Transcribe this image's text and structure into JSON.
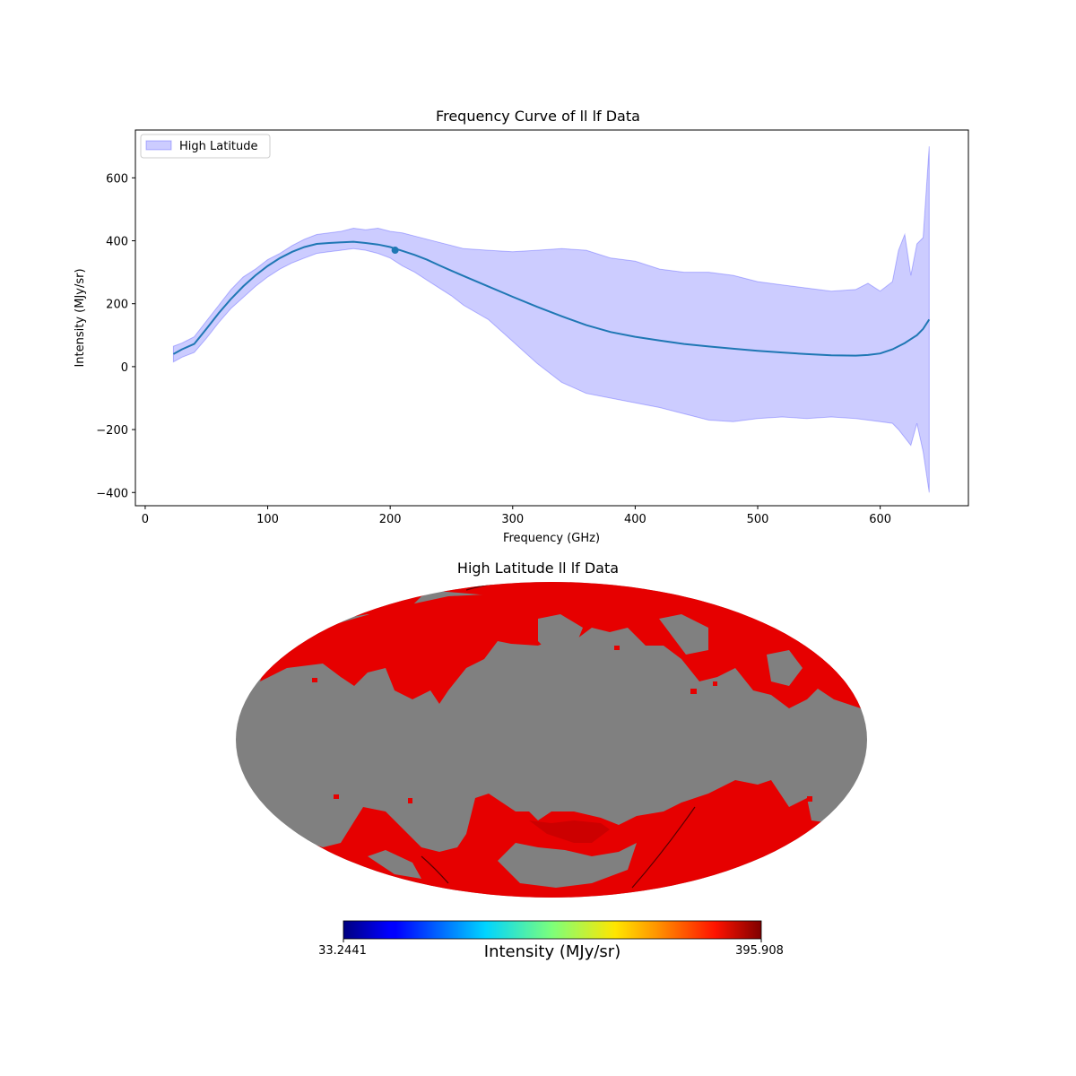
{
  "chart_data": [
    {
      "type": "line",
      "title": "Frequency Curve of ll lf Data",
      "xlabel": "Frequency (GHz)",
      "ylabel": "Intensity (MJy/sr)",
      "xlim": [
        -8,
        672
      ],
      "ylim": [
        -442,
        752
      ],
      "xticks": [
        0,
        100,
        200,
        300,
        400,
        500,
        600
      ],
      "yticks": [
        -400,
        -200,
        0,
        200,
        400,
        600
      ],
      "ytick_labels": [
        "−400",
        "−200",
        "0",
        "200",
        "400",
        "600"
      ],
      "legend": {
        "label": "High Latitude",
        "position": "top-left"
      },
      "series": [
        {
          "kind": "mean-line",
          "color": "#1f77b4",
          "x": [
            23,
            30,
            40,
            50,
            60,
            70,
            80,
            90,
            100,
            110,
            120,
            130,
            140,
            150,
            160,
            170,
            180,
            190,
            200,
            210,
            220,
            230,
            240,
            250,
            260,
            280,
            300,
            320,
            340,
            360,
            380,
            400,
            420,
            440,
            460,
            480,
            500,
            520,
            540,
            560,
            580,
            590,
            600,
            610,
            620,
            630,
            635,
            640
          ],
          "y": [
            40,
            55,
            72,
            120,
            170,
            215,
            255,
            290,
            320,
            345,
            365,
            380,
            390,
            393,
            395,
            397,
            393,
            388,
            380,
            368,
            355,
            340,
            322,
            305,
            288,
            255,
            222,
            190,
            160,
            132,
            110,
            95,
            83,
            72,
            64,
            57,
            50,
            45,
            40,
            36,
            35,
            37,
            42,
            55,
            75,
            100,
            120,
            150
          ]
        },
        {
          "kind": "band",
          "name": "High Latitude",
          "color": "#0000ff",
          "alpha": 0.2,
          "x": [
            23,
            30,
            40,
            50,
            60,
            70,
            80,
            90,
            100,
            110,
            120,
            130,
            140,
            150,
            160,
            170,
            180,
            190,
            200,
            210,
            220,
            230,
            240,
            250,
            260,
            280,
            300,
            320,
            340,
            360,
            380,
            400,
            420,
            440,
            460,
            480,
            500,
            520,
            540,
            560,
            580,
            590,
            600,
            610,
            615,
            620,
            625,
            630,
            635,
            640
          ],
          "upper": [
            65,
            75,
            95,
            145,
            195,
            245,
            285,
            310,
            340,
            360,
            385,
            405,
            420,
            425,
            430,
            440,
            435,
            440,
            430,
            425,
            415,
            405,
            395,
            385,
            375,
            370,
            365,
            370,
            375,
            370,
            345,
            335,
            310,
            300,
            300,
            290,
            270,
            260,
            250,
            240,
            245,
            265,
            240,
            270,
            370,
            420,
            290,
            390,
            410,
            700
          ],
          "lower": [
            15,
            30,
            45,
            90,
            140,
            185,
            220,
            255,
            285,
            310,
            330,
            345,
            360,
            365,
            370,
            375,
            370,
            360,
            345,
            320,
            300,
            275,
            250,
            225,
            195,
            150,
            80,
            10,
            -50,
            -85,
            -100,
            -115,
            -130,
            -150,
            -170,
            -175,
            -165,
            -160,
            -165,
            -160,
            -165,
            -170,
            -175,
            -180,
            -200,
            -225,
            -250,
            -180,
            -270,
            -400
          ]
        }
      ],
      "marker": {
        "x": 204,
        "y": 370
      }
    },
    {
      "type": "heatmap",
      "title": "High Latitude ll lf Data",
      "projection": "mollweide",
      "mask_color": "#808080",
      "fill_color": "#e60000",
      "colormap": "jet",
      "colorbar": {
        "min_label": "33.2441",
        "max_label": "395.908",
        "label": "Intensity (MJy/sr)"
      }
    }
  ]
}
